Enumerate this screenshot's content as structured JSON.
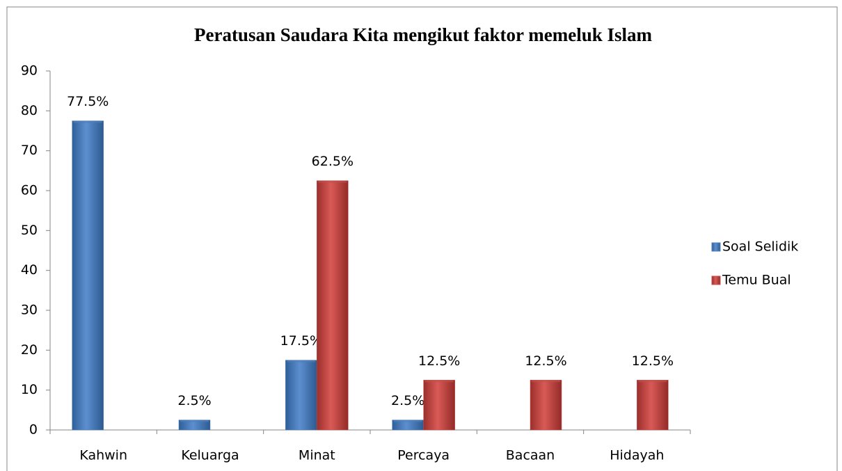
{
  "chart_data": {
    "type": "bar",
    "title": "Peratusan Saudara Kita mengikut faktor memeluk Islam",
    "categories": [
      "Kahwin",
      "Keluarga",
      "Minat",
      "Percaya",
      "Bacaan",
      "Hidayah"
    ],
    "series": [
      {
        "name": "Soal Selidik",
        "color": "#4f81bd",
        "values": [
          77.5,
          2.5,
          17.5,
          2.5,
          null,
          null
        ],
        "value_labels": [
          "77.5%",
          "2.5%",
          "17.5%",
          "2.5%",
          null,
          null
        ]
      },
      {
        "name": "Temu Bual",
        "color": "#c0504d",
        "values": [
          null,
          null,
          62.5,
          12.5,
          12.5,
          12.5
        ],
        "value_labels": [
          null,
          null,
          "62.5%",
          "12.5%",
          "12.5%",
          "12.5%"
        ]
      }
    ],
    "ylim": [
      0,
      90
    ],
    "yticks": [
      0,
      10,
      20,
      30,
      40,
      50,
      60,
      70,
      80,
      90
    ],
    "legend": "right"
  }
}
